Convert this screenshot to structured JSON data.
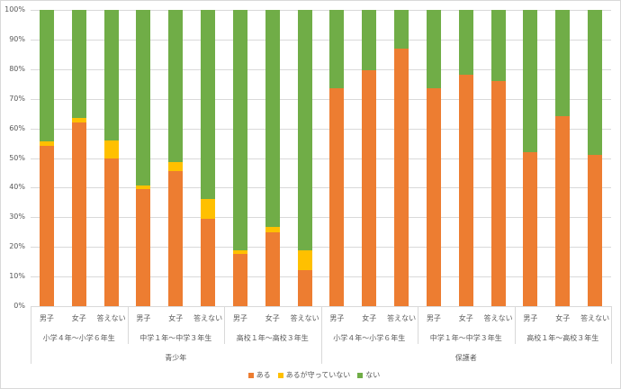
{
  "chart_data": {
    "type": "bar",
    "stacked": true,
    "percent": true,
    "title": "",
    "ylim": [
      0,
      100
    ],
    "yticks": [
      "0%",
      "10%",
      "20%",
      "30%",
      "40%",
      "50%",
      "60%",
      "70%",
      "80%",
      "90%",
      "100%"
    ],
    "groups": [
      {
        "label": "青少年",
        "subgroups": [
          {
            "label": "小学４年～小学６年生",
            "categories": [
              "男子",
              "女子",
              "答えない"
            ]
          },
          {
            "label": "中学１年～中学３年生",
            "categories": [
              "男子",
              "女子",
              "答えない"
            ]
          },
          {
            "label": "高校１年～高校３年生",
            "categories": [
              "男子",
              "女子",
              "答えない"
            ]
          }
        ]
      },
      {
        "label": "保護者",
        "subgroups": [
          {
            "label": "小学４年～小学６年生",
            "categories": [
              "男子",
              "女子",
              "答えない"
            ]
          },
          {
            "label": "中学１年～中学３年生",
            "categories": [
              "男子",
              "女子",
              "答えない"
            ]
          },
          {
            "label": "高校１年～高校３年生",
            "categories": [
              "男子",
              "女子",
              "答えない"
            ]
          }
        ]
      }
    ],
    "series": [
      {
        "name": "ある",
        "color": "#ed7d31",
        "values": [
          54,
          62,
          50,
          39.5,
          45.5,
          29.5,
          17.6,
          25,
          12.2,
          73.5,
          79.5,
          87,
          73.5,
          78,
          76,
          52,
          64,
          51
        ]
      },
      {
        "name": "あるが守っていない",
        "color": "#ffc000",
        "values": [
          1.5,
          1.5,
          6,
          1.2,
          3.1,
          6.7,
          1.2,
          1.7,
          6.6,
          0,
          0,
          0,
          0,
          0,
          0,
          0,
          0,
          0
        ]
      },
      {
        "name": "ない",
        "color": "#70ad47",
        "values": [
          44.5,
          36.5,
          44,
          59.3,
          51.4,
          63.8,
          81.2,
          73.3,
          81.2,
          26.5,
          20.5,
          13,
          26.5,
          22,
          24,
          48,
          36,
          49
        ]
      }
    ],
    "legend_position": "bottom"
  }
}
